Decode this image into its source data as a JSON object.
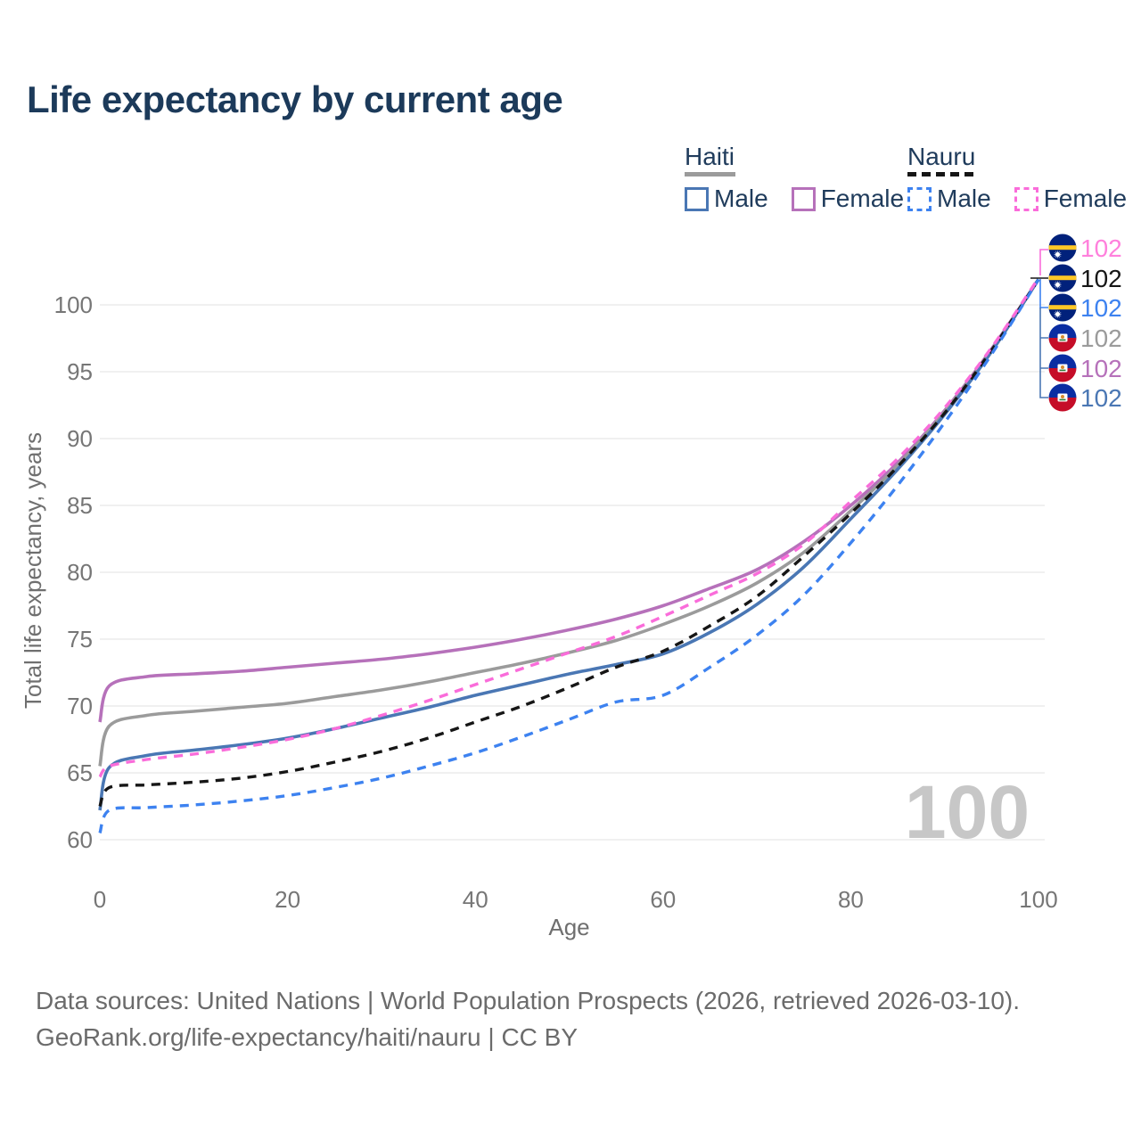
{
  "title": "Life expectancy by current age",
  "legend": {
    "groups": [
      {
        "country": "Haiti",
        "line_style": "solid",
        "line_color": "#9b9b9b",
        "items": [
          {
            "label": "Male",
            "color": "#4a77b4",
            "dashed": false
          },
          {
            "label": "Female",
            "color": "#b671ba",
            "dashed": false
          }
        ]
      },
      {
        "country": "Nauru",
        "line_style": "dashed",
        "line_color": "#161616",
        "items": [
          {
            "label": "Male",
            "color": "#3d82f0",
            "dashed": true
          },
          {
            "label": "Female",
            "color": "#fa6cda",
            "dashed": true
          }
        ]
      }
    ]
  },
  "chart_data": {
    "type": "line",
    "title": "Life expectancy by current age",
    "xlabel": "Age",
    "ylabel": "Total life expectancy, years",
    "xlim": [
      0,
      100
    ],
    "ylim": [
      60,
      103
    ],
    "xticks": [
      0,
      20,
      40,
      60,
      80,
      100
    ],
    "yticks": [
      60,
      65,
      70,
      75,
      80,
      85,
      90,
      95,
      100
    ],
    "grid": "horizontal-only",
    "legend_position": "top-right",
    "watermark": "100",
    "x": [
      0,
      1,
      5,
      10,
      15,
      20,
      25,
      30,
      35,
      40,
      45,
      50,
      55,
      60,
      65,
      70,
      75,
      80,
      85,
      90,
      95,
      100
    ],
    "series": [
      {
        "name": "Haiti Female",
        "country": "Haiti",
        "sex": "Female",
        "color": "#b671ba",
        "dashed": false,
        "end_label": "102",
        "values": [
          68.8,
          71.5,
          72.2,
          72.4,
          72.6,
          72.9,
          73.2,
          73.5,
          73.9,
          74.4,
          75.0,
          75.7,
          76.5,
          77.5,
          78.8,
          80.2,
          82.3,
          85.0,
          88.2,
          92.1,
          96.7,
          101.9
        ]
      },
      {
        "name": "Haiti Both sexes",
        "country": "Haiti",
        "sex": "Both",
        "color": "#9b9b9b",
        "dashed": false,
        "end_label": "102",
        "values": [
          65.5,
          68.5,
          69.3,
          69.6,
          69.9,
          70.2,
          70.7,
          71.2,
          71.8,
          72.5,
          73.2,
          74.0,
          74.9,
          76.1,
          77.5,
          79.2,
          81.5,
          84.6,
          88.0,
          92.0,
          96.6,
          101.9
        ]
      },
      {
        "name": "Haiti Male",
        "country": "Haiti",
        "sex": "Male",
        "color": "#4a77b4",
        "dashed": false,
        "end_label": "102",
        "values": [
          62.2,
          65.4,
          66.3,
          66.7,
          67.1,
          67.6,
          68.3,
          69.1,
          69.9,
          70.8,
          71.6,
          72.4,
          73.1,
          73.9,
          75.5,
          77.6,
          80.4,
          84.0,
          87.7,
          91.8,
          96.5,
          101.9
        ]
      },
      {
        "name": "Nauru Both sexes",
        "country": "Nauru",
        "sex": "Both",
        "color": "#161616",
        "dashed": true,
        "end_label": "102",
        "values": [
          62.5,
          63.9,
          64.1,
          64.3,
          64.6,
          65.1,
          65.8,
          66.6,
          67.6,
          68.8,
          70.0,
          71.4,
          72.9,
          74.1,
          76.0,
          78.2,
          81.2,
          84.4,
          87.9,
          91.9,
          96.6,
          101.9
        ]
      },
      {
        "name": "Nauru Male",
        "country": "Nauru",
        "sex": "Male",
        "color": "#3d82f0",
        "dashed": true,
        "end_label": "102",
        "values": [
          60.5,
          62.2,
          62.4,
          62.6,
          62.9,
          63.3,
          63.9,
          64.6,
          65.5,
          66.5,
          67.7,
          69.0,
          70.3,
          70.8,
          72.9,
          75.3,
          78.3,
          82.2,
          86.5,
          91.2,
          96.3,
          101.9
        ]
      },
      {
        "name": "Nauru Female",
        "country": "Nauru",
        "sex": "Female",
        "color": "#fa6cda",
        "dashed": true,
        "end_label": "102",
        "values": [
          64.7,
          65.5,
          66.0,
          66.4,
          66.9,
          67.5,
          68.3,
          69.3,
          70.4,
          71.6,
          72.8,
          74.0,
          75.2,
          76.7,
          78.3,
          79.9,
          82.1,
          85.3,
          88.5,
          92.3,
          96.8,
          102.0
        ]
      }
    ],
    "end_labels": [
      {
        "series": "Nauru Female",
        "value": "102",
        "color": "#ff80dc",
        "flag": "nauru"
      },
      {
        "series": "Nauru Both sexes",
        "value": "102",
        "color": "#161616",
        "flag": "nauru"
      },
      {
        "series": "Nauru Male",
        "value": "102",
        "color": "#3d82f0",
        "flag": "nauru"
      },
      {
        "series": "Haiti Both sexes",
        "value": "102",
        "color": "#9b9b9b",
        "flag": "haiti"
      },
      {
        "series": "Haiti Female",
        "value": "102",
        "color": "#b671ba",
        "flag": "haiti"
      },
      {
        "series": "Haiti Male",
        "value": "102",
        "color": "#4a77b4",
        "flag": "haiti"
      }
    ],
    "colors": {
      "grid": "#ececec",
      "tick_text": "#767676",
      "axis_title_text": "#6f6f6f",
      "watermark": "#c7c7c7",
      "title_text": "#1c3a5a",
      "footer_text": "#6b6b6b"
    }
  },
  "footer": {
    "line1": "Data sources: United Nations | World Population Prospects (2026, retrieved 2026-03-10).",
    "line2": "GeoRank.org/life-expectancy/haiti/nauru | CC BY"
  }
}
